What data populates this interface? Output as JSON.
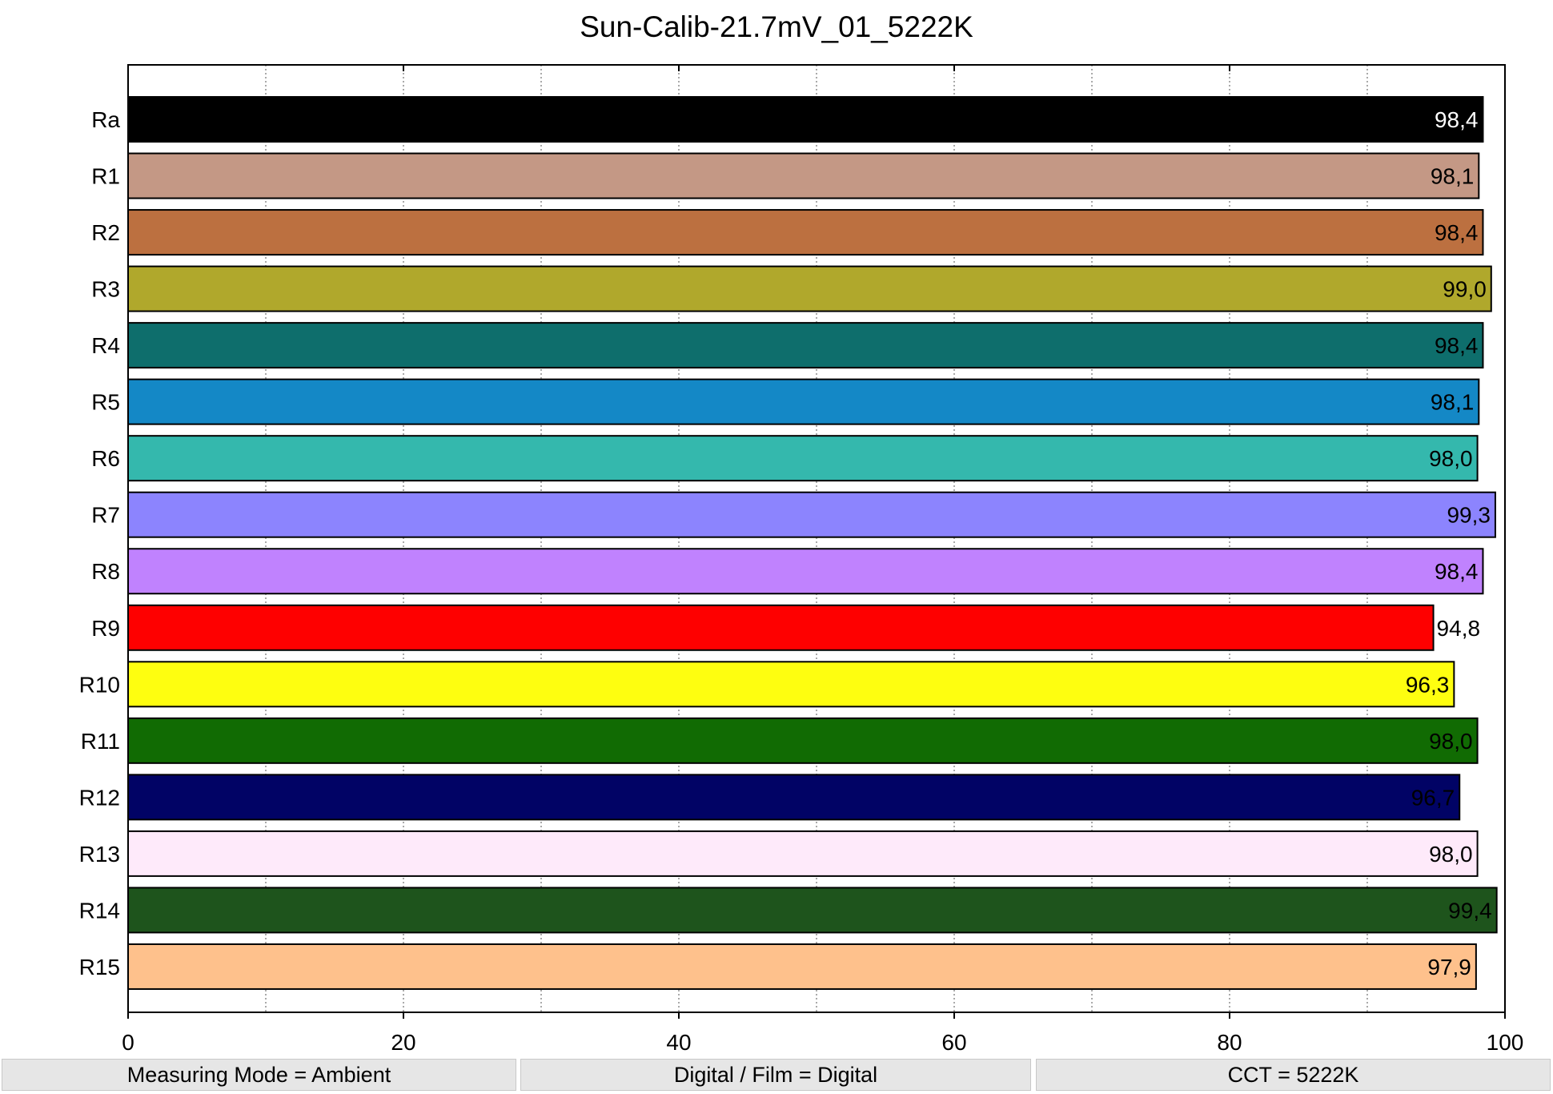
{
  "chart_data": {
    "type": "bar",
    "orientation": "horizontal",
    "title": "Sun-Calib-21.7mV_01_5222K",
    "xlim": [
      0,
      100
    ],
    "x_ticks": [
      0,
      20,
      40,
      60,
      80,
      100
    ],
    "grid": "dotted vertical",
    "categories": [
      "Ra",
      "R1",
      "R2",
      "R3",
      "R4",
      "R5",
      "R6",
      "R7",
      "R8",
      "R9",
      "R10",
      "R11",
      "R12",
      "R13",
      "R14",
      "R15"
    ],
    "values": [
      98.4,
      98.1,
      98.4,
      99.0,
      98.4,
      98.1,
      98.0,
      99.3,
      98.4,
      94.8,
      96.3,
      98.0,
      96.7,
      98.0,
      99.4,
      97.9
    ],
    "value_labels": [
      "98,4",
      "98,1",
      "98,4",
      "99,0",
      "98,4",
      "98,1",
      "98,0",
      "99,3",
      "98,4",
      "94,8",
      "96,3",
      "98,0",
      "96,7",
      "98,0",
      "99,4",
      "97,9"
    ],
    "colors": [
      "#000000",
      "#c49885",
      "#bc7040",
      "#b0a82c",
      "#0e6e6c",
      "#1488c6",
      "#34b8ad",
      "#8c84fe",
      "#c082fe",
      "#fe0000",
      "#fefe10",
      "#116b03",
      "#010365",
      "#feeafa",
      "#1e541c",
      "#fec18c"
    ],
    "label_colors": [
      "#ffffff",
      "#000000",
      "#000000",
      "#000000",
      "#000000",
      "#000000",
      "#000000",
      "#000000",
      "#000000",
      "#000000",
      "#000000",
      "#000000",
      "#000000",
      "#000000",
      "#000000",
      "#000000"
    ]
  },
  "status_bar": {
    "measuring_mode": "Measuring Mode = Ambient",
    "digital_film": "Digital / Film = Digital",
    "cct": "CCT = 5222K"
  }
}
